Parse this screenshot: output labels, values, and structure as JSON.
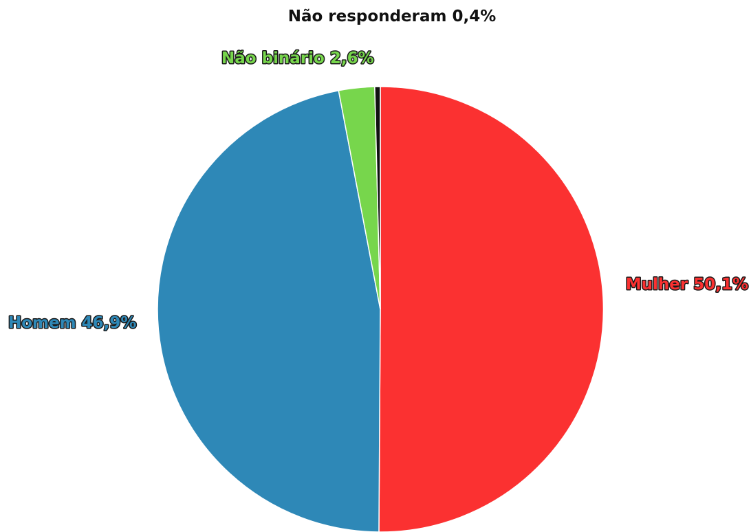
{
  "chart_data": {
    "type": "pie",
    "slices": [
      {
        "label": "Mulher 50,1%",
        "name": "Mulher",
        "value": 50.1,
        "color": "#fb3131",
        "outlined": true
      },
      {
        "label": "Homem 46,9%",
        "name": "Homem",
        "value": 46.9,
        "color": "#2e88b7",
        "outlined": true
      },
      {
        "label": "Não binário 2,6%",
        "name": "Não binário",
        "value": 2.6,
        "color": "#77d64c",
        "outlined": true
      },
      {
        "label": "Não responderam 0,4%",
        "name": "Não responderam",
        "value": 0.4,
        "color": "#111111",
        "outlined": false
      }
    ]
  }
}
